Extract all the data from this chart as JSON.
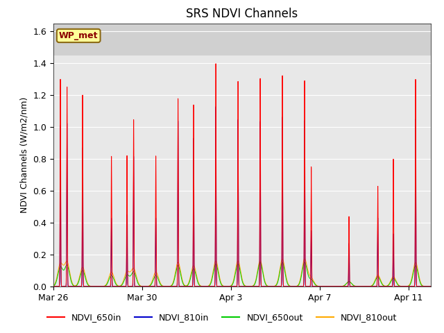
{
  "title": "SRS NDVI Channels",
  "ylabel": "NDVI Channels (W/m2/nm)",
  "xlabel": "",
  "ylim": [
    0.0,
    1.65
  ],
  "yticks": [
    0.0,
    0.2,
    0.4,
    0.6,
    0.8,
    1.0,
    1.2,
    1.4,
    1.6
  ],
  "site_label": "WP_met",
  "legend_entries": [
    "NDVI_650in",
    "NDVI_810in",
    "NDVI_650out",
    "NDVI_810out"
  ],
  "line_colors": [
    "#ff0000",
    "#0000cc",
    "#00cc00",
    "#ffaa00"
  ],
  "background_color": "#e8e8e8",
  "shade_above": 1.45,
  "shade_color": "#d0d0d0",
  "grid_color": "#ffffff",
  "figsize": [
    6.4,
    4.8
  ],
  "dpi": 100,
  "xtick_labels": [
    "Mar 26",
    "Mar 30",
    "Apr 3",
    "Apr 7",
    "Apr 11"
  ],
  "num_days": 17,
  "ppd": 288,
  "day_peaks": {
    "650in_a": [
      1.3,
      1.2,
      0.0,
      0.82,
      0.0,
      0.0,
      1.14,
      1.4,
      1.29,
      1.31,
      1.33,
      1.3,
      0.0,
      0.44,
      0.0,
      0.8,
      1.3
    ],
    "650in_b": [
      1.26,
      0.0,
      0.82,
      1.05,
      0.82,
      1.18,
      0.0,
      0.0,
      0.0,
      0.0,
      0.0,
      0.75,
      0.0,
      0.0,
      0.63,
      0.0,
      0.0
    ],
    "810in_a": [
      1.01,
      0.87,
      0.0,
      0.45,
      0.0,
      0.0,
      0.93,
      1.13,
      1.05,
      1.04,
      1.07,
      1.05,
      0.0,
      0.27,
      0.0,
      0.33,
      1.05
    ],
    "810in_b": [
      1.03,
      0.0,
      0.43,
      0.82,
      0.43,
      1.04,
      0.0,
      0.0,
      0.0,
      0.0,
      0.0,
      0.35,
      0.0,
      0.0,
      0.43,
      0.0,
      0.0
    ],
    "650out_a": [
      0.12,
      0.1,
      0.0,
      0.07,
      0.0,
      0.0,
      0.11,
      0.14,
      0.14,
      0.15,
      0.15,
      0.15,
      0.0,
      0.03,
      0.0,
      0.05,
      0.13
    ],
    "650out_b": [
      0.13,
      0.0,
      0.07,
      0.09,
      0.07,
      0.13,
      0.0,
      0.0,
      0.0,
      0.0,
      0.0,
      0.04,
      0.0,
      0.0,
      0.06,
      0.0,
      0.0
    ],
    "810out_a": [
      0.14,
      0.12,
      0.0,
      0.09,
      0.0,
      0.0,
      0.13,
      0.16,
      0.16,
      0.16,
      0.17,
      0.17,
      0.0,
      0.03,
      0.0,
      0.06,
      0.15
    ],
    "810out_b": [
      0.15,
      0.0,
      0.09,
      0.11,
      0.09,
      0.15,
      0.0,
      0.0,
      0.0,
      0.0,
      0.0,
      0.05,
      0.0,
      0.0,
      0.07,
      0.0,
      0.0
    ]
  }
}
